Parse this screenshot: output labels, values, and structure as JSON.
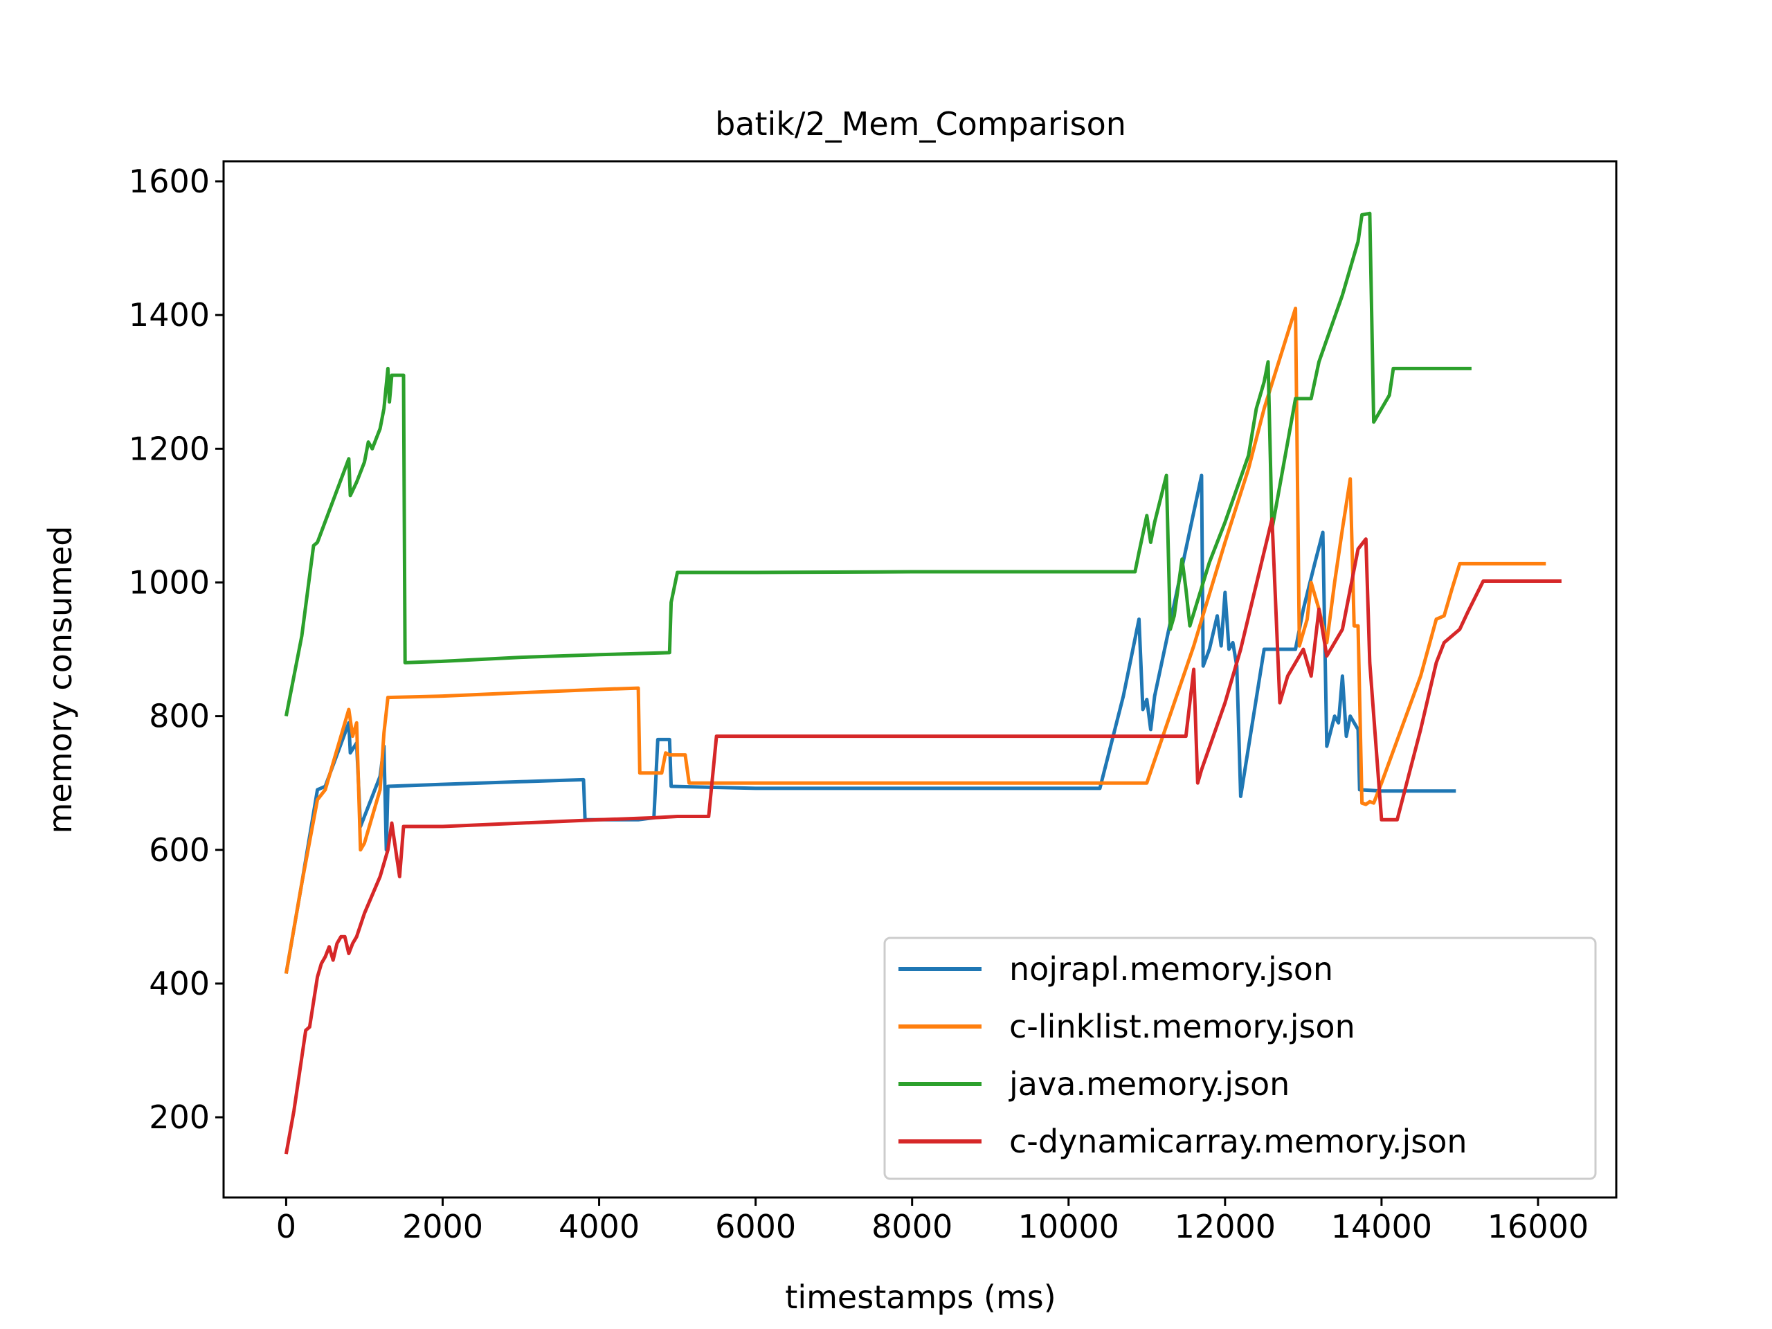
{
  "chart_data": {
    "type": "line",
    "title": "batik/2_Mem_Comparison",
    "xlabel": "timestamps (ms)",
    "ylabel": "memory consumed",
    "xlim": [
      -800,
      17000
    ],
    "ylim": [
      80,
      1630
    ],
    "xticks": [
      0,
      2000,
      4000,
      6000,
      8000,
      10000,
      12000,
      14000,
      16000
    ],
    "yticks": [
      200,
      400,
      600,
      800,
      1000,
      1200,
      1400,
      1600
    ],
    "grid": false,
    "legend_position": "lower-right",
    "series": [
      {
        "name": "nojrapl.memory.json",
        "color": "#1f77b4",
        "points": [
          [
            0,
            415
          ],
          [
            200,
            550
          ],
          [
            400,
            690
          ],
          [
            500,
            695
          ],
          [
            800,
            790
          ],
          [
            820,
            745
          ],
          [
            900,
            760
          ],
          [
            950,
            635
          ],
          [
            1000,
            650
          ],
          [
            1200,
            710
          ],
          [
            1250,
            755
          ],
          [
            1280,
            600
          ],
          [
            1300,
            695
          ],
          [
            2000,
            698
          ],
          [
            3000,
            702
          ],
          [
            3800,
            705
          ],
          [
            3820,
            645
          ],
          [
            4500,
            645
          ],
          [
            4700,
            648
          ],
          [
            4750,
            765
          ],
          [
            4900,
            765
          ],
          [
            4920,
            695
          ],
          [
            6000,
            692
          ],
          [
            10000,
            692
          ],
          [
            10400,
            692
          ],
          [
            10700,
            830
          ],
          [
            10900,
            945
          ],
          [
            10950,
            810
          ],
          [
            11000,
            825
          ],
          [
            11050,
            780
          ],
          [
            11100,
            830
          ],
          [
            11700,
            1160
          ],
          [
            11720,
            875
          ],
          [
            11800,
            900
          ],
          [
            11900,
            950
          ],
          [
            11950,
            905
          ],
          [
            12000,
            985
          ],
          [
            12050,
            900
          ],
          [
            12100,
            910
          ],
          [
            12150,
            875
          ],
          [
            12200,
            680
          ],
          [
            12500,
            900
          ],
          [
            12700,
            900
          ],
          [
            12900,
            900
          ],
          [
            13000,
            960
          ],
          [
            13150,
            1030
          ],
          [
            13250,
            1075
          ],
          [
            13300,
            755
          ],
          [
            13400,
            800
          ],
          [
            13450,
            790
          ],
          [
            13500,
            860
          ],
          [
            13550,
            770
          ],
          [
            13600,
            800
          ],
          [
            13700,
            780
          ],
          [
            13720,
            690
          ],
          [
            14000,
            688
          ],
          [
            14950,
            688
          ]
        ]
      },
      {
        "name": "c-linklist.memory.json",
        "color": "#ff7f0e",
        "points": [
          [
            0,
            415
          ],
          [
            200,
            550
          ],
          [
            400,
            675
          ],
          [
            500,
            690
          ],
          [
            800,
            810
          ],
          [
            850,
            770
          ],
          [
            900,
            790
          ],
          [
            950,
            600
          ],
          [
            1000,
            610
          ],
          [
            1200,
            690
          ],
          [
            1250,
            775
          ],
          [
            1300,
            828
          ],
          [
            2000,
            830
          ],
          [
            3000,
            835
          ],
          [
            4000,
            840
          ],
          [
            4500,
            842
          ],
          [
            4520,
            715
          ],
          [
            4800,
            715
          ],
          [
            4850,
            745
          ],
          [
            4900,
            742
          ],
          [
            5100,
            742
          ],
          [
            5150,
            700
          ],
          [
            6000,
            700
          ],
          [
            10000,
            700
          ],
          [
            11000,
            700
          ],
          [
            11600,
            905
          ],
          [
            12000,
            1060
          ],
          [
            12300,
            1170
          ],
          [
            12500,
            1260
          ],
          [
            12900,
            1410
          ],
          [
            12950,
            905
          ],
          [
            13050,
            945
          ],
          [
            13100,
            1000
          ],
          [
            13200,
            960
          ],
          [
            13300,
            910
          ],
          [
            13400,
            1000
          ],
          [
            13500,
            1080
          ],
          [
            13600,
            1155
          ],
          [
            13650,
            935
          ],
          [
            13700,
            935
          ],
          [
            13750,
            670
          ],
          [
            13800,
            668
          ],
          [
            13850,
            672
          ],
          [
            13900,
            670
          ],
          [
            14000,
            700
          ],
          [
            14500,
            860
          ],
          [
            14700,
            945
          ],
          [
            14800,
            950
          ],
          [
            14900,
            990
          ],
          [
            15000,
            1028
          ],
          [
            15500,
            1028
          ],
          [
            16100,
            1028
          ]
        ]
      },
      {
        "name": "java.memory.json",
        "color": "#2ca02c",
        "points": [
          [
            0,
            800
          ],
          [
            200,
            920
          ],
          [
            350,
            1055
          ],
          [
            400,
            1060
          ],
          [
            800,
            1185
          ],
          [
            820,
            1130
          ],
          [
            900,
            1150
          ],
          [
            1000,
            1180
          ],
          [
            1050,
            1210
          ],
          [
            1100,
            1200
          ],
          [
            1200,
            1230
          ],
          [
            1250,
            1260
          ],
          [
            1300,
            1320
          ],
          [
            1320,
            1270
          ],
          [
            1350,
            1310
          ],
          [
            1500,
            1310
          ],
          [
            1520,
            880
          ],
          [
            2000,
            882
          ],
          [
            3000,
            888
          ],
          [
            4000,
            892
          ],
          [
            4900,
            895
          ],
          [
            4920,
            970
          ],
          [
            5000,
            1015
          ],
          [
            6000,
            1015
          ],
          [
            8000,
            1016
          ],
          [
            10000,
            1016
          ],
          [
            10850,
            1016
          ],
          [
            10900,
            1045
          ],
          [
            11000,
            1100
          ],
          [
            11050,
            1060
          ],
          [
            11100,
            1090
          ],
          [
            11250,
            1160
          ],
          [
            11300,
            930
          ],
          [
            11350,
            950
          ],
          [
            11450,
            1035
          ],
          [
            11500,
            990
          ],
          [
            11550,
            935
          ],
          [
            11800,
            1030
          ],
          [
            12000,
            1090
          ],
          [
            12300,
            1190
          ],
          [
            12400,
            1260
          ],
          [
            12500,
            1300
          ],
          [
            12550,
            1330
          ],
          [
            12600,
            1080
          ],
          [
            12900,
            1275
          ],
          [
            13100,
            1275
          ],
          [
            13200,
            1330
          ],
          [
            13500,
            1430
          ],
          [
            13700,
            1510
          ],
          [
            13750,
            1550
          ],
          [
            13850,
            1552
          ],
          [
            13900,
            1240
          ],
          [
            14100,
            1280
          ],
          [
            14150,
            1320
          ],
          [
            15000,
            1320
          ],
          [
            15150,
            1320
          ]
        ]
      },
      {
        "name": "c-dynamicarray.memory.json",
        "color": "#d62728",
        "points": [
          [
            0,
            145
          ],
          [
            100,
            210
          ],
          [
            250,
            330
          ],
          [
            300,
            335
          ],
          [
            400,
            410
          ],
          [
            450,
            430
          ],
          [
            500,
            440
          ],
          [
            550,
            455
          ],
          [
            600,
            435
          ],
          [
            650,
            460
          ],
          [
            700,
            470
          ],
          [
            750,
            470
          ],
          [
            800,
            445
          ],
          [
            850,
            460
          ],
          [
            900,
            470
          ],
          [
            1000,
            505
          ],
          [
            1200,
            560
          ],
          [
            1300,
            600
          ],
          [
            1350,
            640
          ],
          [
            1450,
            560
          ],
          [
            1500,
            635
          ],
          [
            2000,
            635
          ],
          [
            3000,
            640
          ],
          [
            4000,
            645
          ],
          [
            4700,
            648
          ],
          [
            5000,
            650
          ],
          [
            5400,
            650
          ],
          [
            5450,
            710
          ],
          [
            5500,
            770
          ],
          [
            6000,
            770
          ],
          [
            8000,
            770
          ],
          [
            10000,
            770
          ],
          [
            11000,
            770
          ],
          [
            11500,
            770
          ],
          [
            11600,
            870
          ],
          [
            11650,
            700
          ],
          [
            11700,
            720
          ],
          [
            12000,
            820
          ],
          [
            12200,
            900
          ],
          [
            12600,
            1095
          ],
          [
            12700,
            820
          ],
          [
            12800,
            860
          ],
          [
            12900,
            880
          ],
          [
            13000,
            900
          ],
          [
            13100,
            860
          ],
          [
            13200,
            960
          ],
          [
            13300,
            890
          ],
          [
            13400,
            910
          ],
          [
            13500,
            930
          ],
          [
            13600,
            990
          ],
          [
            13700,
            1050
          ],
          [
            13800,
            1065
          ],
          [
            13850,
            880
          ],
          [
            14000,
            645
          ],
          [
            14200,
            645
          ],
          [
            14500,
            780
          ],
          [
            14700,
            880
          ],
          [
            14800,
            910
          ],
          [
            15000,
            930
          ],
          [
            15100,
            955
          ],
          [
            15300,
            1002
          ],
          [
            16300,
            1002
          ]
        ]
      }
    ]
  }
}
